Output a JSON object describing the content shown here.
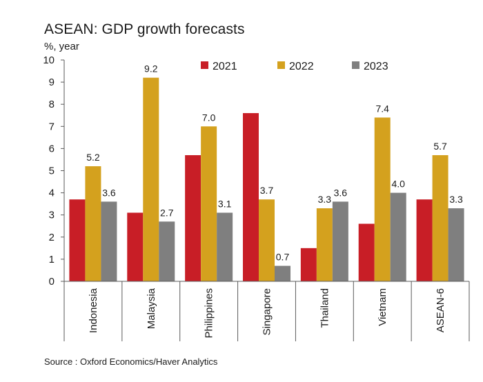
{
  "chart_data": {
    "type": "bar",
    "title": "ASEAN: GDP growth forecasts",
    "ylabel": "%, year",
    "xlabel": "",
    "ylim": [
      0,
      10
    ],
    "yticks": [
      "0",
      "1",
      "2",
      "3",
      "4",
      "5",
      "6",
      "7",
      "8",
      "9",
      "10"
    ],
    "categories": [
      "Indonesia",
      "Malaysia",
      "Philippines",
      "Singapore",
      "Thailand",
      "Vietnam",
      "ASEAN-6"
    ],
    "series": [
      {
        "name": "2021",
        "color": "#c81e26",
        "values": [
          3.7,
          3.1,
          5.7,
          7.6,
          1.5,
          2.6,
          3.7
        ],
        "labels": [
          "",
          "",
          "",
          "",
          "",
          "",
          ""
        ]
      },
      {
        "name": "2022",
        "color": "#d4a11e",
        "values": [
          5.2,
          9.2,
          7.0,
          3.7,
          3.3,
          7.4,
          5.7
        ],
        "labels": [
          "5.2",
          "9.2",
          "7.0",
          "3.7",
          "3.3",
          "7.4",
          "5.7"
        ]
      },
      {
        "name": "2023",
        "color": "#7f7f7f",
        "values": [
          3.6,
          2.7,
          3.1,
          0.7,
          3.6,
          4.0,
          3.3
        ],
        "labels": [
          "3.6",
          "2.7",
          "3.1",
          "0.7",
          "3.6",
          "4.0",
          "3.3"
        ]
      }
    ],
    "legend_position": "top-center",
    "grid": false
  },
  "source": "Source : Oxford Economics/Haver Analytics"
}
